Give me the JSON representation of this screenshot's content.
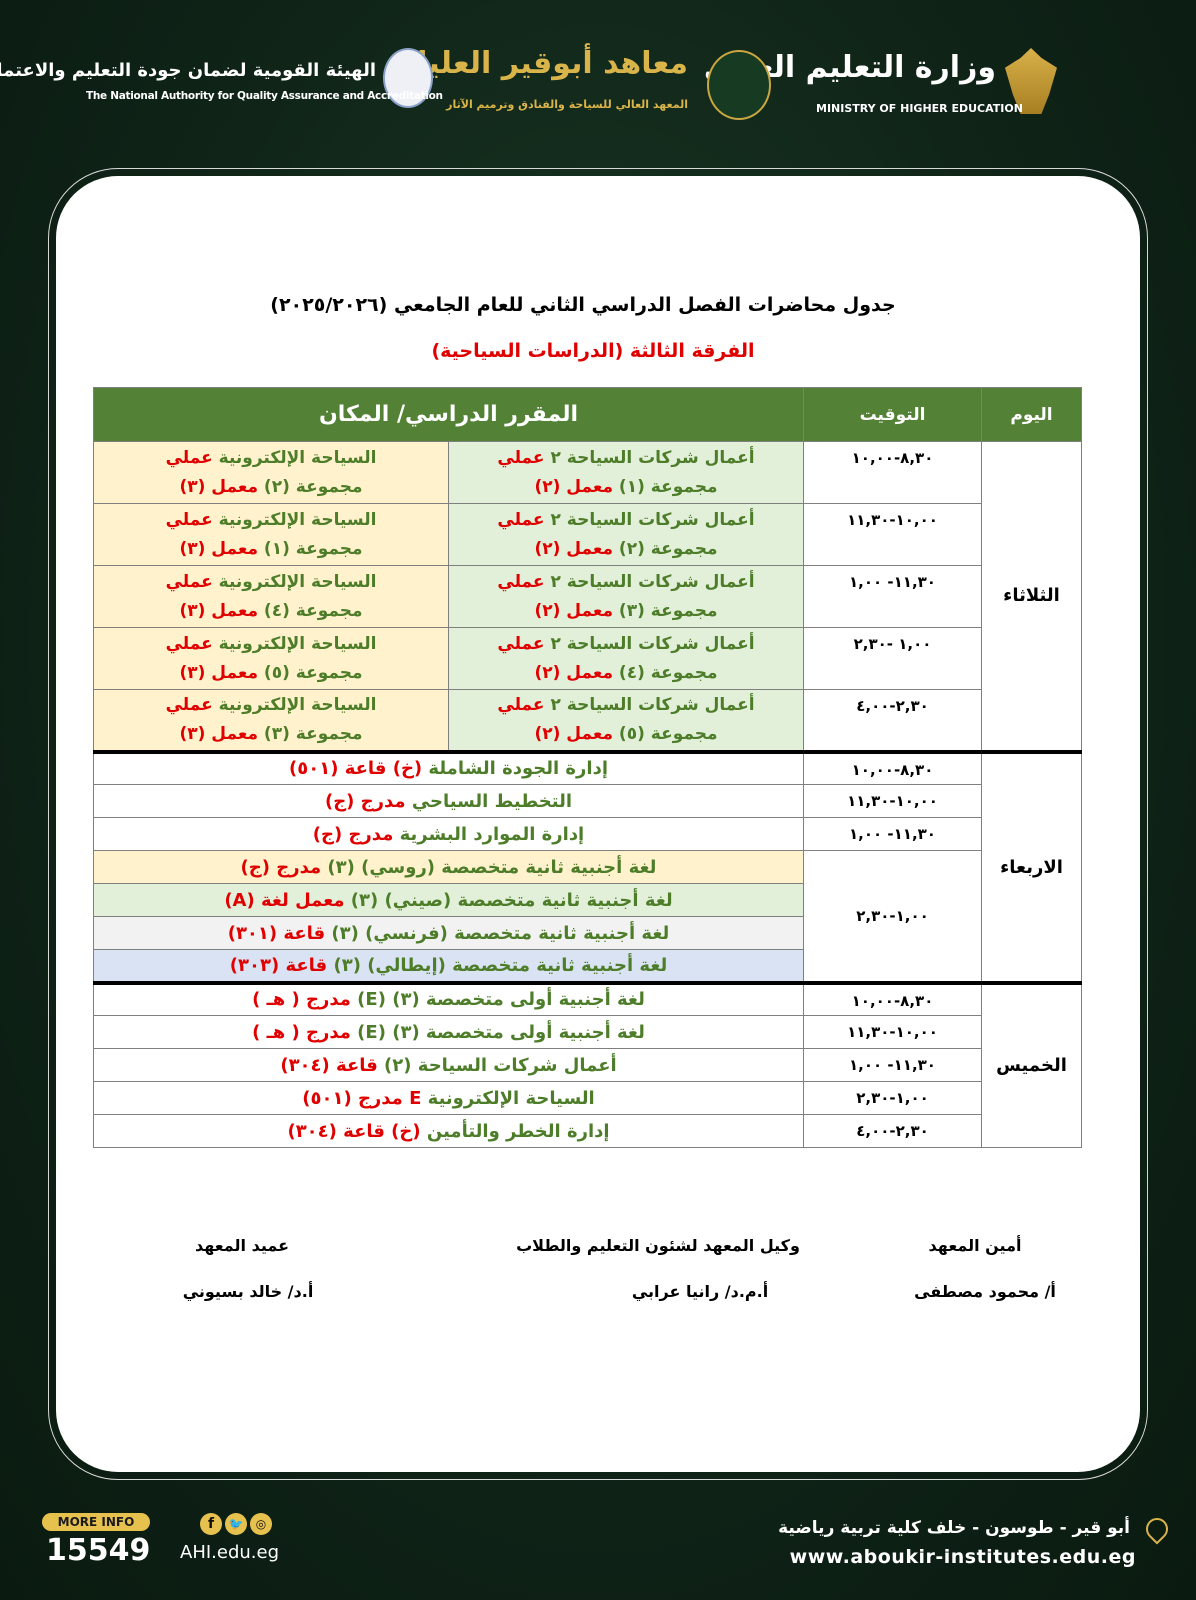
{
  "header": {
    "ministry_ar": "وزارة التعليم العالي",
    "ministry_en": "MINISTRY OF HIGHER EDUCATION",
    "institute_ar": "معاهد أبوقير العليا",
    "institute_sub": "المعهد العالي للسياحة والفنادق وترميم الآثار",
    "naqaae_ar": "الهيئة القومية لضمان جودة التعليم والاعتماد",
    "naqaae_en": "The National Authority for Quality Assurance and Accreditation"
  },
  "title": "جدول محاضرات الفصل الدراسي الثاني  للعام الجامعي (٢٠٢٥/٢٠٢٦)",
  "subtitle": "الفرقة الثالثة (الدراسات السياحية)",
  "colors": {
    "header_green": "#538135",
    "text_green": "#4e7d2a",
    "text_red": "#e00000",
    "yellow": "#fff2cc",
    "light_green": "#e2efd9",
    "grey": "#f2f2f2",
    "blue": "#dae3f3"
  },
  "table": {
    "headers": {
      "day": "اليوم",
      "time": "التوقيت",
      "course": "المقرر الدراسي/ المكان"
    },
    "days": [
      {
        "day": "الثلاثاء",
        "rows": [
          {
            "time": "١٠,٠٠-٨,٣٠",
            "right": [
              [
                [
                  "أعمال شركات السياحة ٢ ",
                  "g"
                ],
                [
                  "عملي",
                  "r"
                ]
              ],
              [
                [
                  "مجموعة (١) ",
                  "g"
                ],
                [
                  "معمل (٢)",
                  "r"
                ]
              ]
            ],
            "left": [
              [
                [
                  "السياحة الإلكترونية ",
                  "g"
                ],
                [
                  "عملي",
                  "r"
                ]
              ],
              [
                [
                  "مجموعة (٢) ",
                  "g"
                ],
                [
                  "معمل (٣)",
                  "r"
                ]
              ]
            ]
          },
          {
            "time": "١١,٣٠-١٠,٠٠",
            "right": [
              [
                [
                  "أعمال شركات السياحة ٢ ",
                  "g"
                ],
                [
                  "عملي",
                  "r"
                ]
              ],
              [
                [
                  "مجموعة (٢) ",
                  "g"
                ],
                [
                  "معمل (٢)",
                  "r"
                ]
              ]
            ],
            "left": [
              [
                [
                  "السياحة الإلكترونية ",
                  "g"
                ],
                [
                  "عملي",
                  "r"
                ]
              ],
              [
                [
                  "مجموعة (١) ",
                  "g"
                ],
                [
                  "معمل (٣)",
                  "r"
                ]
              ]
            ]
          },
          {
            "time": "١,٠٠ -١١,٣٠",
            "right": [
              [
                [
                  "أعمال شركات السياحة ٢ ",
                  "g"
                ],
                [
                  "عملي",
                  "r"
                ]
              ],
              [
                [
                  "مجموعة (٣) ",
                  "g"
                ],
                [
                  "معمل (٢)",
                  "r"
                ]
              ]
            ],
            "left": [
              [
                [
                  "السياحة الإلكترونية ",
                  "g"
                ],
                [
                  "عملي",
                  "r"
                ]
              ],
              [
                [
                  "مجموعة (٤) ",
                  "g"
                ],
                [
                  "معمل (٣)",
                  "r"
                ]
              ]
            ]
          },
          {
            "time": "٢,٣٠- ١,٠٠",
            "right": [
              [
                [
                  "أعمال شركات السياحة ٢ ",
                  "g"
                ],
                [
                  "عملي",
                  "r"
                ]
              ],
              [
                [
                  "مجموعة (٤) ",
                  "g"
                ],
                [
                  "معمل (٢)",
                  "r"
                ]
              ]
            ],
            "left": [
              [
                [
                  "السياحة الإلكترونية ",
                  "g"
                ],
                [
                  "عملي",
                  "r"
                ]
              ],
              [
                [
                  "مجموعة (٥) ",
                  "g"
                ],
                [
                  "معمل (٣)",
                  "r"
                ]
              ]
            ]
          },
          {
            "time": "٤,٠٠-٢,٣٠",
            "right": [
              [
                [
                  "أعمال شركات السياحة ٢ ",
                  "g"
                ],
                [
                  "عملي",
                  "r"
                ]
              ],
              [
                [
                  "مجموعة (٥) ",
                  "g"
                ],
                [
                  "معمل (٢)",
                  "r"
                ]
              ]
            ],
            "left": [
              [
                [
                  "السياحة الإلكترونية ",
                  "g"
                ],
                [
                  "عملي",
                  "r"
                ]
              ],
              [
                [
                  "مجموعة (٣) ",
                  "g"
                ],
                [
                  "معمل (٣)",
                  "r"
                ]
              ]
            ]
          }
        ]
      },
      {
        "day": "الاربعاء",
        "rows": [
          {
            "time": "١٠,٠٠-٨,٣٠",
            "content": [
              [
                "إدارة الجودة الشاملة ",
                "g"
              ],
              [
                "(خ) قاعة (٥٠١)",
                "r"
              ]
            ]
          },
          {
            "time": "١١,٣٠-١٠,٠٠",
            "content": [
              [
                "التخطيط السياحي ",
                "g"
              ],
              [
                "مدرج (ج)",
                "r"
              ]
            ]
          },
          {
            "time": "١,٠٠ -١١,٣٠",
            "content": [
              [
                "إدارة الموارد البشرية ",
                "g"
              ],
              [
                "مدرج (ج)",
                "r"
              ]
            ]
          },
          {
            "time": "٢,٣٠-١,٠٠",
            "content": [
              [
                "لغة أجنبية ثانية متخصصة (روسي) (٣) ",
                "g"
              ],
              [
                "مدرج (ج)",
                "r"
              ]
            ],
            "bg": "y"
          },
          {
            "content": [
              [
                "لغة أجنبية ثانية متخصصة (صيني) (٣) ",
                "g"
              ],
              [
                "معمل لغة (A)",
                "r"
              ]
            ],
            "bg": "lg"
          },
          {
            "content": [
              [
                "لغة أجنبية ثانية متخصصة (فرنسي) (٣) ",
                "g"
              ],
              [
                "قاعة (٣٠١)",
                "r"
              ]
            ],
            "bg": "gr"
          },
          {
            "content": [
              [
                "لغة  أجنبية ثانية متخصصة (إيطالي) (٣) ",
                "g"
              ],
              [
                "قاعة (٣٠٣)",
                "r"
              ]
            ],
            "bg": "bl"
          }
        ]
      },
      {
        "day": "الخميس",
        "rows": [
          {
            "time": "١٠,٠٠-٨,٣٠",
            "content": [
              [
                "لغة أجنبية أولى  متخصصة (٣) (E) ",
                "g"
              ],
              [
                "مدرج ( هـ )",
                "r"
              ]
            ]
          },
          {
            "time": "١١,٣٠-١٠,٠٠",
            "content": [
              [
                "لغة أجنبية أولى متخصصة (٣) (E) ",
                "g"
              ],
              [
                "مدرج ( هـ )",
                "r"
              ]
            ]
          },
          {
            "time": "١,٠٠ -١١,٣٠",
            "content": [
              [
                "أعمال شركات السياحة (٢) ",
                "g"
              ],
              [
                "قاعة (٣٠٤)",
                "r"
              ]
            ]
          },
          {
            "time": "٢,٣٠-١,٠٠",
            "content": [
              [
                "السياحة الإلكترونية ",
                "g"
              ],
              [
                "E مدرج (٥٠١)",
                "r"
              ]
            ]
          },
          {
            "time": "٤,٠٠-٢,٣٠",
            "content": [
              [
                "إدارة الخطر والتأمين ",
                "g"
              ],
              [
                "(خ) قاعة (٣٠٤)",
                "r"
              ]
            ]
          }
        ]
      }
    ]
  },
  "signatures": [
    {
      "role": "أمين المعهد",
      "name": "أ/ محمود مصطفى"
    },
    {
      "role": "وكيل المعهد لشئون التعليم والطلاب",
      "name": "أ.م.د/ رانيا عرابي"
    },
    {
      "role": "عميد المعهد",
      "name": "أ.د/ خالد بسيوني"
    }
  ],
  "footer": {
    "more_info": "MORE INFO",
    "hotline": "15549",
    "site_short": "AHI.edu.eg",
    "address": "أبو قير - طوسون - خلف كلية تربية رياضية",
    "website": "www.aboukir-institutes.edu.eg",
    "social_icons": [
      "facebook-icon",
      "twitter-icon",
      "instagram-icon"
    ]
  }
}
